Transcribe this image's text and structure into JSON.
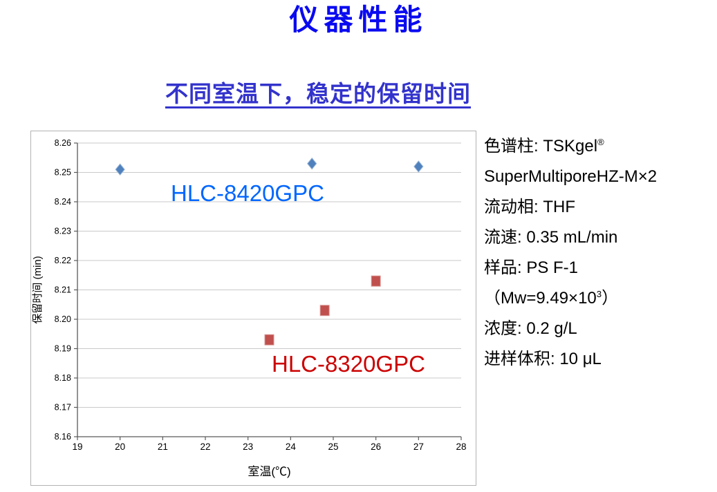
{
  "title": {
    "text": "仪器性能",
    "color": "#0a0af0"
  },
  "subtitle": {
    "text": "不同室温下，稳定的保留时间",
    "color": "#3333cc"
  },
  "chart_data": {
    "type": "scatter",
    "title": "",
    "x_title": "室温(℃)",
    "y_title": "保留时间 (min)",
    "xlim": [
      19,
      28
    ],
    "ylim": [
      8.16,
      8.26
    ],
    "x_ticks": [
      19,
      20,
      21,
      22,
      23,
      24,
      25,
      26,
      27,
      28
    ],
    "y_ticks": [
      8.16,
      8.17,
      8.18,
      8.19,
      8.2,
      8.21,
      8.22,
      8.23,
      8.24,
      8.25,
      8.26
    ],
    "grid": "horizontal-only",
    "legend": "in-plot text labels",
    "series": [
      {
        "name": "HLC-8420GPC",
        "marker": "diamond",
        "marker_color": "#4f81bd",
        "marker_stroke": "#95b3d7",
        "label_color": "#0066ff",
        "points": [
          [
            20,
            8.251
          ],
          [
            24.5,
            8.253
          ],
          [
            27,
            8.252
          ]
        ]
      },
      {
        "name": "HLC-8320GPC",
        "marker": "square",
        "marker_color": "#c0504d",
        "marker_stroke": "#d99694",
        "label_color": "#cc0000",
        "points": [
          [
            23.5,
            8.193
          ],
          [
            24.8,
            8.203
          ],
          [
            26,
            8.213
          ]
        ]
      }
    ]
  },
  "conditions": {
    "text_color": "#000000",
    "lines": [
      {
        "segments": [
          {
            "t": "色谱柱: TSKgel"
          },
          {
            "t": "®",
            "sup": true
          }
        ]
      },
      {
        "segments": [
          {
            "t": "SuperMultiporeHZ-M×2"
          }
        ]
      },
      {
        "segments": [
          {
            "t": "流动相: THF"
          }
        ]
      },
      {
        "segments": [
          {
            "t": "流速: 0.35 mL/min"
          }
        ]
      },
      {
        "segments": [
          {
            "t": "样品: PS F-1"
          }
        ]
      },
      {
        "segments": [
          {
            "t": "（Mw=9.49×10"
          },
          {
            "t": "3",
            "sup": true
          },
          {
            "t": "）"
          }
        ]
      },
      {
        "segments": [
          {
            "t": "浓度: 0.2 g/L"
          }
        ]
      },
      {
        "segments": [
          {
            "t": "进样体积: 10 μL"
          }
        ]
      }
    ]
  },
  "colors": {
    "background": "#ffffff",
    "grid": "#c9c9c9",
    "axis": "#595959",
    "tick_label": "#000000",
    "chart_border": "#b3b3b3"
  }
}
